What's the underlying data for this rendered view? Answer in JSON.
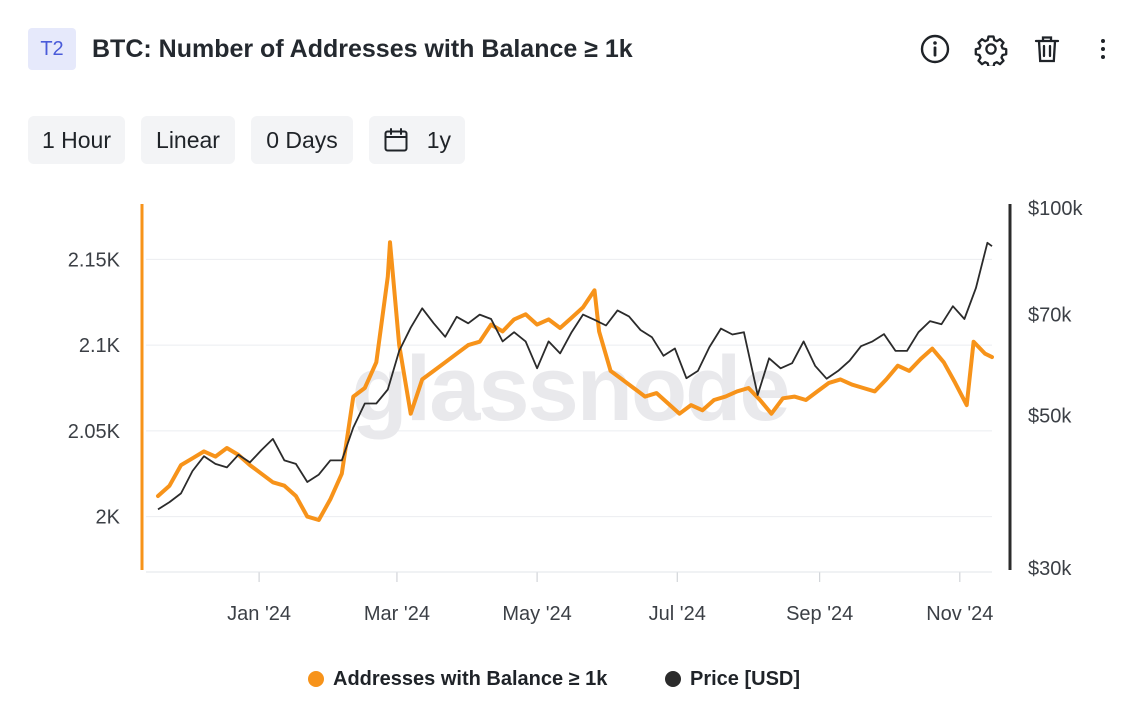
{
  "header": {
    "tag": "T2",
    "title": "BTC: Number of Addresses with Balance ≥ 1k",
    "icons": [
      "info-icon",
      "gear-icon",
      "trash-icon",
      "more-vertical-icon"
    ]
  },
  "controls": {
    "resolution": "1 Hour",
    "scale": "Linear",
    "smoothing": "0 Days",
    "range": "1y"
  },
  "colors": {
    "addresses": "#f7931a",
    "price": "#2b2b2b",
    "axis_left": "#f7931a",
    "axis_right": "#2b2b2b"
  },
  "watermark": "glassnode",
  "chart_data": {
    "type": "line",
    "x_ticks": [
      "Jan '24",
      "Mar '24",
      "May '24",
      "Jul '24",
      "Sep '24",
      "Nov '24"
    ],
    "y_left": {
      "ticks": [
        "2K",
        "2.05K",
        "2.1K",
        "2.15K"
      ],
      "values": [
        2000,
        2050,
        2100,
        2150
      ],
      "range": [
        1970,
        2180
      ]
    },
    "y_right": {
      "ticks": [
        "$30k",
        "$50k",
        "$70k",
        "$100k"
      ],
      "values": [
        30000,
        50000,
        70000,
        100000
      ],
      "range": [
        30000,
        100000
      ],
      "scale": "log"
    },
    "grid": true,
    "legend_position": "bottom",
    "series": [
      {
        "name": "Addresses with Balance ≥ 1k",
        "axis": "left",
        "x": [
          "2023-11-18",
          "2023-11-23",
          "2023-11-28",
          "2023-12-03",
          "2023-12-08",
          "2023-12-13",
          "2023-12-18",
          "2023-12-23",
          "2023-12-28",
          "2024-01-02",
          "2024-01-07",
          "2024-01-12",
          "2024-01-17",
          "2024-01-22",
          "2024-01-27",
          "2024-02-01",
          "2024-02-06",
          "2024-02-11",
          "2024-02-16",
          "2024-02-21",
          "2024-02-26",
          "2024-02-27",
          "2024-03-02",
          "2024-03-07",
          "2024-03-12",
          "2024-03-17",
          "2024-03-22",
          "2024-03-27",
          "2024-04-01",
          "2024-04-06",
          "2024-04-11",
          "2024-04-16",
          "2024-04-21",
          "2024-04-26",
          "2024-05-01",
          "2024-05-06",
          "2024-05-11",
          "2024-05-16",
          "2024-05-21",
          "2024-05-26",
          "2024-05-28",
          "2024-06-02",
          "2024-06-07",
          "2024-06-12",
          "2024-06-17",
          "2024-06-22",
          "2024-06-27",
          "2024-07-02",
          "2024-07-07",
          "2024-07-12",
          "2024-07-17",
          "2024-07-22",
          "2024-07-27",
          "2024-08-01",
          "2024-08-06",
          "2024-08-11",
          "2024-08-16",
          "2024-08-21",
          "2024-08-26",
          "2024-08-31",
          "2024-09-05",
          "2024-09-10",
          "2024-09-15",
          "2024-09-20",
          "2024-09-25",
          "2024-09-30",
          "2024-10-05",
          "2024-10-10",
          "2024-10-15",
          "2024-10-20",
          "2024-10-25",
          "2024-10-30",
          "2024-11-04",
          "2024-11-07",
          "2024-11-12",
          "2024-11-15"
        ],
        "values": [
          2012,
          2018,
          2030,
          2034,
          2038,
          2035,
          2040,
          2036,
          2030,
          2025,
          2020,
          2018,
          2012,
          2000,
          1998,
          2010,
          2025,
          2070,
          2075,
          2090,
          2140,
          2160,
          2100,
          2060,
          2080,
          2085,
          2090,
          2095,
          2100,
          2102,
          2112,
          2108,
          2115,
          2118,
          2112,
          2115,
          2110,
          2116,
          2122,
          2132,
          2108,
          2085,
          2080,
          2075,
          2070,
          2072,
          2066,
          2060,
          2065,
          2062,
          2068,
          2070,
          2073,
          2075,
          2068,
          2060,
          2069,
          2070,
          2068,
          2073,
          2078,
          2080,
          2077,
          2075,
          2073,
          2080,
          2088,
          2085,
          2092,
          2098,
          2090,
          2078,
          2065,
          2102,
          2095,
          2093
        ]
      },
      {
        "name": "Price [USD]",
        "axis": "right",
        "x": [
          "2023-11-18",
          "2023-11-23",
          "2023-11-28",
          "2023-12-03",
          "2023-12-08",
          "2023-12-13",
          "2023-12-18",
          "2023-12-23",
          "2023-12-28",
          "2024-01-02",
          "2024-01-07",
          "2024-01-12",
          "2024-01-17",
          "2024-01-22",
          "2024-01-27",
          "2024-02-01",
          "2024-02-06",
          "2024-02-11",
          "2024-02-16",
          "2024-02-21",
          "2024-02-26",
          "2024-03-02",
          "2024-03-07",
          "2024-03-12",
          "2024-03-17",
          "2024-03-22",
          "2024-03-27",
          "2024-04-01",
          "2024-04-06",
          "2024-04-11",
          "2024-04-16",
          "2024-04-21",
          "2024-04-26",
          "2024-05-01",
          "2024-05-06",
          "2024-05-11",
          "2024-05-16",
          "2024-05-21",
          "2024-05-26",
          "2024-05-31",
          "2024-06-05",
          "2024-06-10",
          "2024-06-15",
          "2024-06-20",
          "2024-06-25",
          "2024-06-30",
          "2024-07-05",
          "2024-07-10",
          "2024-07-15",
          "2024-07-20",
          "2024-07-25",
          "2024-07-30",
          "2024-08-05",
          "2024-08-10",
          "2024-08-15",
          "2024-08-20",
          "2024-08-25",
          "2024-08-30",
          "2024-09-04",
          "2024-09-09",
          "2024-09-14",
          "2024-09-19",
          "2024-09-24",
          "2024-09-29",
          "2024-10-04",
          "2024-10-09",
          "2024-10-14",
          "2024-10-19",
          "2024-10-24",
          "2024-10-29",
          "2024-11-03",
          "2024-11-08",
          "2024-11-13",
          "2024-11-15"
        ],
        "values": [
          36500,
          37400,
          38500,
          41500,
          43600,
          42500,
          42000,
          43800,
          42700,
          44500,
          46200,
          43000,
          42500,
          40000,
          41000,
          43000,
          43000,
          48000,
          52000,
          52000,
          54500,
          62000,
          67000,
          71500,
          68000,
          65000,
          69500,
          68000,
          70000,
          69000,
          64000,
          66000,
          64000,
          58500,
          64000,
          61500,
          66000,
          70000,
          68800,
          67500,
          71000,
          69600,
          66500,
          64900,
          61000,
          62500,
          56600,
          58000,
          62800,
          66800,
          65500,
          66000,
          53500,
          60500,
          58500,
          59500,
          64000,
          59000,
          56500,
          58000,
          60000,
          63000,
          64000,
          65600,
          62000,
          62000,
          66000,
          68500,
          67800,
          72000,
          69000,
          76500,
          89000,
          88000
        ]
      }
    ]
  }
}
